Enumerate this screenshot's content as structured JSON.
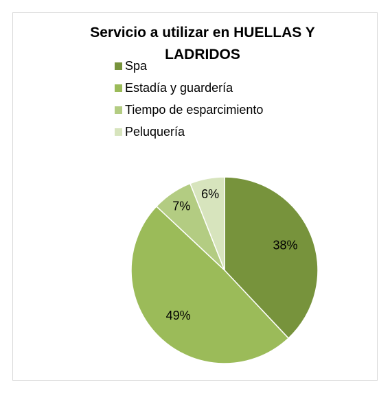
{
  "chart_data": {
    "type": "pie",
    "title": "Servicio a utilizar en HUELLAS Y LADRIDOS",
    "categories": [
      "Spa",
      "Estadía y guardería",
      "Tiempo de esparcimiento",
      "Peluquería"
    ],
    "values": [
      38,
      49,
      7,
      6
    ],
    "value_labels": [
      "38%",
      "49%",
      "7%",
      "6%"
    ],
    "colors": [
      "#77933c",
      "#9bbb59",
      "#b3cc82",
      "#d7e4bd"
    ],
    "legend": "top"
  }
}
